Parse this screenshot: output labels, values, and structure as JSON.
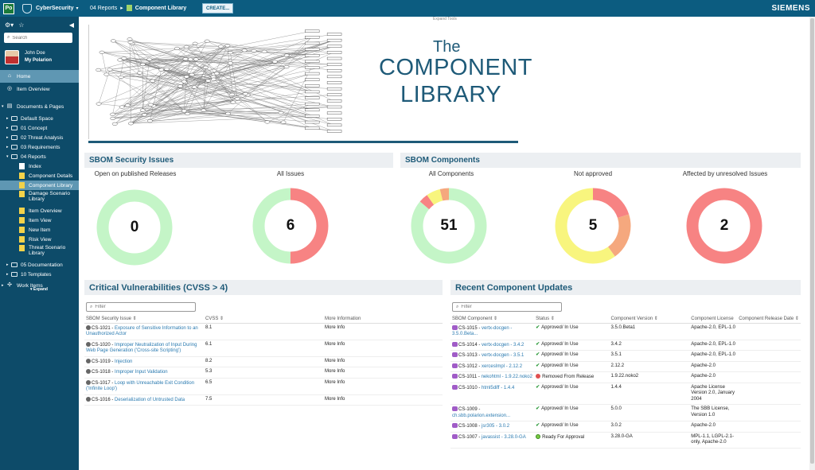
{
  "topbar": {
    "logo": "Po",
    "project": "CyberSecurity",
    "breadcrumb_folder": "04 Reports",
    "breadcrumb_page": "Component Library",
    "create_label": "CREATE...",
    "brand": "SIEMENS",
    "expand_tools": "Expand Tools"
  },
  "sidebar": {
    "search_placeholder": "Search",
    "user_name": "John Doe",
    "user_link": "My Polarion",
    "nav": {
      "home": "Home",
      "item_overview": "Item Overview",
      "documents_pages": "Documents & Pages",
      "default_space": "Default Space",
      "concept": "01 Concept",
      "threat_analysis": "02 Threat Analysis",
      "requirements": "03 Requirements",
      "reports": "04 Reports",
      "index": "Index",
      "component_details": "Component Details",
      "component_library": "Component Library",
      "damage_scenario_library": "Damage Scenario Library",
      "item_overview_page": "Item Overview",
      "item_view": "Item View",
      "new_item": "New Item",
      "risk_view": "Risk View",
      "threat_scenario_library": "Threat Scenario Library",
      "documentation": "05 Documentation",
      "templates": "10 Templates",
      "work_items": "Work Items"
    },
    "expand_label": "▾ Expand"
  },
  "banner": {
    "the": "The",
    "component": "COMPONENT",
    "library": "LIBRARY"
  },
  "sbom_issues": {
    "title": "SBOM Security Issues",
    "published": {
      "label": "Open on published Releases",
      "value": "0"
    },
    "all": {
      "label": "All Issues",
      "value": "6"
    }
  },
  "sbom_components": {
    "title": "SBOM Components",
    "all": {
      "label": "All Components",
      "value": "51"
    },
    "not_approved": {
      "label": "Not approved",
      "value": "5"
    },
    "unresolved": {
      "label": "Affected by unresolved Issues",
      "value": "2"
    }
  },
  "colors": {
    "green": "#c4f5c7",
    "red": "#f78383",
    "yellow": "#f8f57e",
    "orange": "#f5a87e"
  },
  "donuts": {
    "published": [
      {
        "frac": 1.0,
        "color": "#c4f5c7"
      }
    ],
    "all_issues": [
      {
        "frac": 0.5,
        "color": "#f78383"
      },
      {
        "frac": 0.5,
        "color": "#c4f5c7"
      }
    ],
    "all_components": [
      {
        "frac": 0.86,
        "color": "#c4f5c7"
      },
      {
        "frac": 0.04,
        "color": "#f78383"
      },
      {
        "frac": 0.06,
        "color": "#f8f57e"
      },
      {
        "frac": 0.04,
        "color": "#f5a87e"
      }
    ],
    "not_approved": [
      {
        "frac": 0.2,
        "color": "#f78383"
      },
      {
        "frac": 0.2,
        "color": "#f5a87e"
      },
      {
        "frac": 0.6,
        "color": "#f8f57e"
      }
    ],
    "unresolved": [
      {
        "frac": 1.0,
        "color": "#f78383"
      }
    ]
  },
  "vulnerabilities": {
    "title": "Critical Vulnerabilities (CVSS > 4)",
    "filter_placeholder": "Filter",
    "headers": [
      "SBOM Security Issue ⇕",
      "CVSS ⇕",
      "More Information"
    ],
    "rows": [
      {
        "id": "CS-1021",
        "title": "Exposure of Sensitive Information to an Unauthorized Actor",
        "cvss": "8.1",
        "info": "More Info"
      },
      {
        "id": "CS-1020",
        "title": "Improper Neutralization of Input During Web Page Generation ('Cross-site Scripting')",
        "cvss": "6.1",
        "info": "More Info"
      },
      {
        "id": "CS-1019",
        "title": "Injection",
        "cvss": "8.2",
        "info": "More Info"
      },
      {
        "id": "CS-1018",
        "title": "Improper Input Validation",
        "cvss": "5.3",
        "info": "More Info"
      },
      {
        "id": "CS-1017",
        "title": "Loop with Unreachable Exit Condition ('Infinite Loop')",
        "cvss": "6.5",
        "info": "More Info"
      },
      {
        "id": "CS-1016",
        "title": "Deserialization of Untrusted Data",
        "cvss": "7.5",
        "info": "More Info"
      }
    ]
  },
  "updates": {
    "title": "Recent Component Updates",
    "filter_placeholder": "Filter",
    "headers": [
      "SBOM Component ⇕",
      "Status ⇕",
      "Component Version ⇕",
      "Component License",
      "Component Release Date ⇕"
    ],
    "rows": [
      {
        "id": "CS-1015",
        "name": "vertx-docgen - 3.5.0.Beta...",
        "status": "Approved/ In Use",
        "kind": "ok",
        "version": "3.5.0.Beta1",
        "license": "Apache-2.0, EPL-1.0",
        "date": ""
      },
      {
        "id": "CS-1014",
        "name": "vertx-docgen - 3.4.2",
        "status": "Approved/ In Use",
        "kind": "ok",
        "version": "3.4.2",
        "license": "Apache-2.0, EPL-1.0",
        "date": ""
      },
      {
        "id": "CS-1013",
        "name": "vertx-docgen - 3.5.1",
        "status": "Approved/ In Use",
        "kind": "ok",
        "version": "3.5.1",
        "license": "Apache-2.0, EPL-1.0",
        "date": ""
      },
      {
        "id": "CS-1012",
        "name": "xercesImpl - 2.12.2",
        "status": "Approved/ In Use",
        "kind": "ok",
        "version": "2.12.2",
        "license": "Apache-2.0",
        "date": ""
      },
      {
        "id": "CS-1011",
        "name": "nekohtml - 1.9.22.noko2",
        "status": "Removed From Release",
        "kind": "bad",
        "version": "1.9.22.noko2",
        "license": "Apache-2.0",
        "date": ""
      },
      {
        "id": "CS-1010",
        "name": "html5diff - 1.4.4",
        "status": "Approved/ In Use",
        "kind": "ok",
        "version": "1.4.4",
        "license": "Apache License Version 2.0, January 2004",
        "date": ""
      },
      {
        "id": "CS-1009",
        "name": "ch.sbb.polarion.extension...",
        "status": "Approved/ In Use",
        "kind": "ok",
        "version": "5.0.0",
        "license": "The SBB License, Version 1.0",
        "date": ""
      },
      {
        "id": "CS-1008",
        "name": "jsr305 - 3.0.2",
        "status": "Approved/ In Use",
        "kind": "ok",
        "version": "3.0.2",
        "license": "Apache-2.0",
        "date": ""
      },
      {
        "id": "CS-1007",
        "name": "javassist - 3.28.0-GA",
        "status": "Ready For Approval",
        "kind": "ready",
        "version": "3.28.0-GA",
        "license": "MPL-1.1, LGPL-2.1-only, Apache-2.0",
        "date": ""
      }
    ]
  }
}
